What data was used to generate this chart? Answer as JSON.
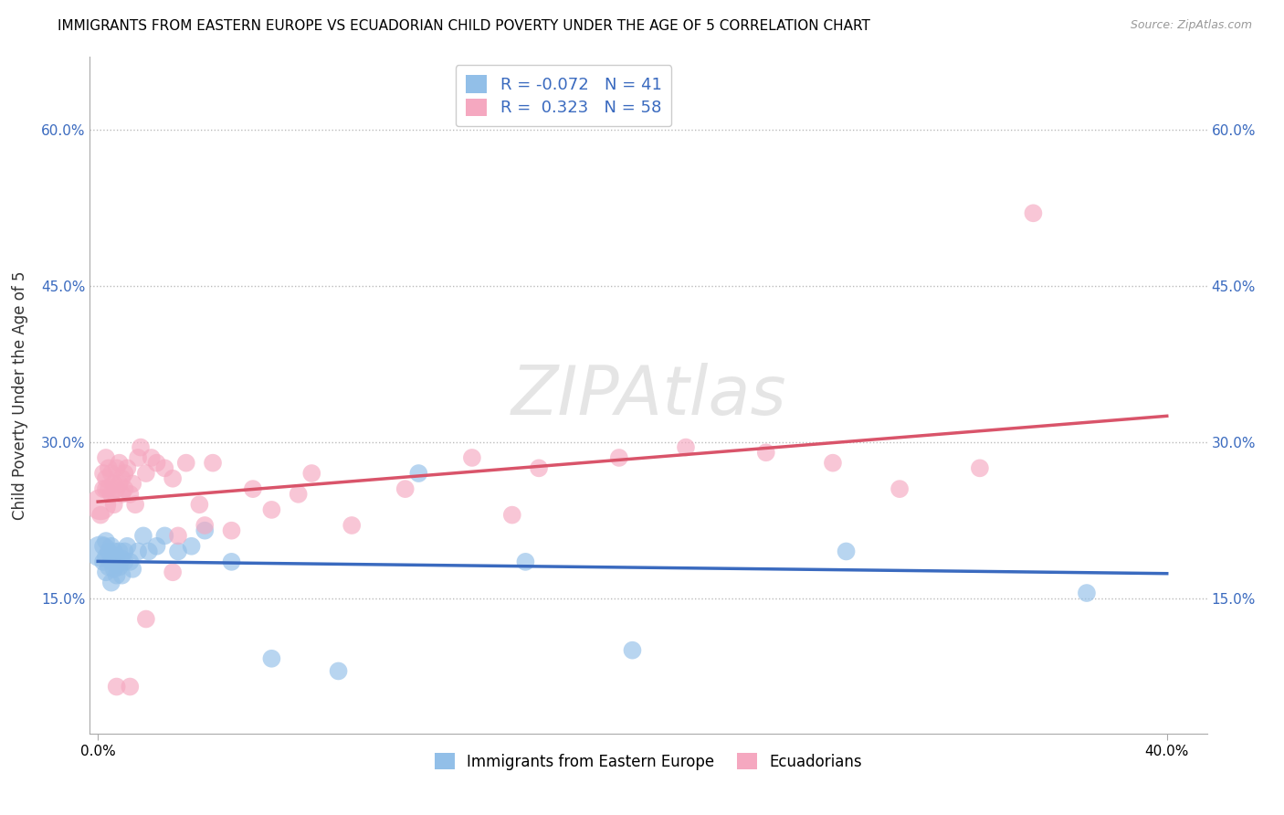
{
  "title": "IMMIGRANTS FROM EASTERN EUROPE VS ECUADORIAN CHILD POVERTY UNDER THE AGE OF 5 CORRELATION CHART",
  "source": "Source: ZipAtlas.com",
  "ylabel": "Child Poverty Under the Age of 5",
  "ytick_vals": [
    0.15,
    0.3,
    0.45,
    0.6
  ],
  "ytick_labels": [
    "15.0%",
    "30.0%",
    "45.0%",
    "60.0%"
  ],
  "xlim": [
    -0.003,
    0.415
  ],
  "ylim": [
    0.02,
    0.67
  ],
  "xmin": 0.0,
  "xmax": 0.4,
  "blue_R": -0.072,
  "blue_N": 41,
  "pink_R": 0.323,
  "pink_N": 58,
  "blue_color": "#92bfe8",
  "pink_color": "#f5a8c0",
  "blue_line_color": "#3a6abf",
  "pink_line_color": "#d9546a",
  "legend1_R_color": "#3a6abf",
  "legend2_label_blue": "Immigrants from Eastern Europe",
  "legend2_label_pink": "Ecuadorians",
  "blue_scatter_x": [
    0.001,
    0.002,
    0.002,
    0.003,
    0.003,
    0.003,
    0.004,
    0.004,
    0.005,
    0.005,
    0.005,
    0.006,
    0.006,
    0.007,
    0.007,
    0.007,
    0.008,
    0.008,
    0.009,
    0.009,
    0.01,
    0.01,
    0.011,
    0.012,
    0.013,
    0.015,
    0.017,
    0.019,
    0.022,
    0.025,
    0.03,
    0.035,
    0.04,
    0.05,
    0.065,
    0.09,
    0.12,
    0.16,
    0.2,
    0.28,
    0.37
  ],
  "blue_scatter_y": [
    0.195,
    0.185,
    0.2,
    0.19,
    0.205,
    0.175,
    0.195,
    0.18,
    0.2,
    0.185,
    0.165,
    0.195,
    0.178,
    0.19,
    0.182,
    0.172,
    0.195,
    0.18,
    0.188,
    0.172,
    0.195,
    0.185,
    0.2,
    0.185,
    0.178,
    0.195,
    0.21,
    0.195,
    0.2,
    0.21,
    0.195,
    0.2,
    0.215,
    0.185,
    0.092,
    0.08,
    0.27,
    0.185,
    0.1,
    0.195,
    0.155
  ],
  "blue_scatter_size": [
    600,
    200,
    200,
    200,
    200,
    200,
    200,
    200,
    200,
    200,
    200,
    200,
    200,
    200,
    200,
    200,
    200,
    200,
    200,
    200,
    200,
    200,
    200,
    200,
    200,
    200,
    200,
    200,
    200,
    200,
    200,
    200,
    200,
    200,
    200,
    200,
    200,
    200,
    200,
    200,
    200
  ],
  "pink_scatter_x": [
    0.001,
    0.001,
    0.002,
    0.002,
    0.003,
    0.003,
    0.003,
    0.004,
    0.004,
    0.005,
    0.005,
    0.006,
    0.006,
    0.007,
    0.007,
    0.008,
    0.008,
    0.009,
    0.009,
    0.01,
    0.01,
    0.011,
    0.012,
    0.013,
    0.014,
    0.015,
    0.016,
    0.018,
    0.02,
    0.022,
    0.025,
    0.028,
    0.03,
    0.033,
    0.038,
    0.043,
    0.05,
    0.058,
    0.065,
    0.08,
    0.095,
    0.115,
    0.14,
    0.165,
    0.195,
    0.22,
    0.25,
    0.275,
    0.3,
    0.33,
    0.155,
    0.075,
    0.04,
    0.028,
    0.018,
    0.012,
    0.007,
    0.35
  ],
  "pink_scatter_y": [
    0.24,
    0.23,
    0.27,
    0.255,
    0.285,
    0.265,
    0.255,
    0.255,
    0.275,
    0.27,
    0.25,
    0.26,
    0.24,
    0.275,
    0.255,
    0.28,
    0.26,
    0.265,
    0.25,
    0.27,
    0.255,
    0.275,
    0.25,
    0.26,
    0.24,
    0.285,
    0.295,
    0.27,
    0.285,
    0.28,
    0.275,
    0.265,
    0.21,
    0.28,
    0.24,
    0.28,
    0.215,
    0.255,
    0.235,
    0.27,
    0.22,
    0.255,
    0.285,
    0.275,
    0.285,
    0.295,
    0.29,
    0.28,
    0.255,
    0.275,
    0.23,
    0.25,
    0.22,
    0.175,
    0.13,
    0.065,
    0.065,
    0.52
  ],
  "pink_scatter_size": [
    600,
    200,
    200,
    200,
    200,
    200,
    200,
    200,
    200,
    200,
    200,
    200,
    200,
    200,
    200,
    200,
    200,
    200,
    200,
    200,
    200,
    200,
    200,
    200,
    200,
    200,
    200,
    200,
    200,
    200,
    200,
    200,
    200,
    200,
    200,
    200,
    200,
    200,
    200,
    200,
    200,
    200,
    200,
    200,
    200,
    200,
    200,
    200,
    200,
    200,
    200,
    200,
    200,
    200,
    200,
    200,
    200,
    200
  ]
}
